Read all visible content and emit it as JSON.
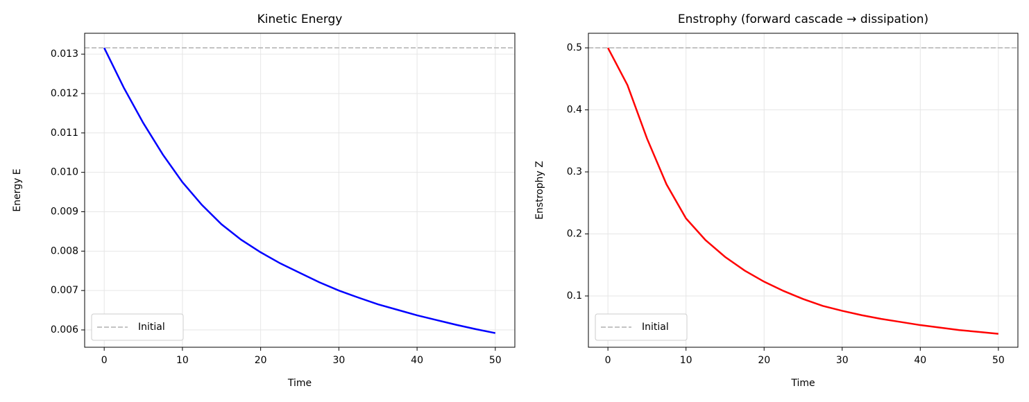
{
  "chart_data": [
    {
      "type": "line",
      "title": "Kinetic Energy",
      "xlabel": "Time",
      "ylabel": "Energy E",
      "x": [
        0,
        2.5,
        5,
        7.5,
        10,
        12.5,
        15,
        17.5,
        20,
        22.5,
        25,
        27.5,
        30,
        32.5,
        35,
        37.5,
        40,
        42.5,
        45,
        47.5,
        50
      ],
      "values": [
        0.01316,
        0.01215,
        0.01125,
        0.01045,
        0.00975,
        0.00917,
        0.00868,
        0.00829,
        0.00797,
        0.00769,
        0.00745,
        0.00721,
        0.007,
        0.00682,
        0.00665,
        0.00651,
        0.00637,
        0.00625,
        0.00613,
        0.00602,
        0.00592
      ],
      "color": "#0000ff",
      "reference_line": {
        "name": "Initial",
        "value": 0.01316,
        "color": "#bbbbbb"
      },
      "xlim": [
        -2.5,
        52.5
      ],
      "xticks": [
        0,
        10,
        20,
        30,
        40,
        50
      ],
      "ylim": [
        0.00556,
        0.01353
      ],
      "yticks": [
        0.006,
        0.007,
        0.008,
        0.009,
        {
          "value": 0.01,
          "label": "0.010"
        },
        0.011,
        0.012,
        0.013
      ],
      "grid": true,
      "legend": "lower left"
    },
    {
      "type": "line",
      "title": "Enstrophy (forward cascade → dissipation)",
      "xlabel": "Time",
      "ylabel": "Enstrophy Z",
      "x": [
        0,
        2.5,
        5,
        7.5,
        10,
        12.5,
        15,
        17.5,
        20,
        22.5,
        25,
        27.5,
        30,
        32.5,
        35,
        37.5,
        40,
        42.5,
        45,
        47.5,
        50
      ],
      "values": [
        0.5,
        0.44,
        0.354,
        0.28,
        0.225,
        0.19,
        0.163,
        0.141,
        0.123,
        0.108,
        0.095,
        0.084,
        0.076,
        0.069,
        0.063,
        0.058,
        0.053,
        0.049,
        0.045,
        0.042,
        0.039
      ],
      "color": "#ff0000",
      "reference_line": {
        "name": "Initial",
        "value": 0.5,
        "color": "#bbbbbb"
      },
      "xlim": [
        -2.5,
        52.5
      ],
      "xticks": [
        0,
        10,
        20,
        30,
        40,
        50
      ],
      "ylim": [
        0.0173,
        0.5235
      ],
      "yticks": [
        0.1,
        0.2,
        0.3,
        0.4,
        0.5
      ],
      "grid": true,
      "legend": "lower left"
    }
  ]
}
